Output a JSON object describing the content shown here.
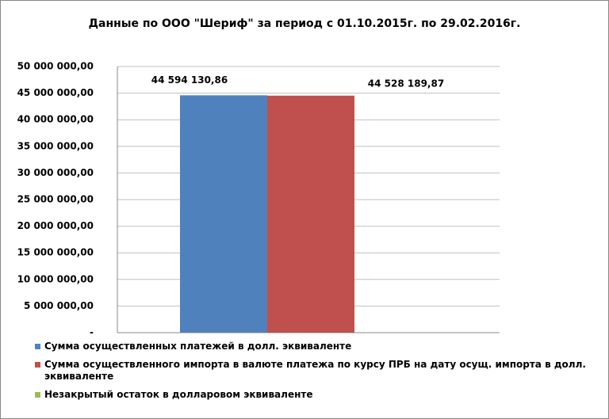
{
  "chart_data": {
    "type": "bar",
    "title": "Данные по ООО \"Шериф\" за период с 01.10.2015г. по 29.02.2016г.",
    "categories": [
      null
    ],
    "series": [
      {
        "name": "Сумма осуществленных платежей в долл. эквиваленте",
        "color": "#4f81bd",
        "values": [
          44594130.86
        ],
        "value_labels": [
          "44 594 130,86"
        ]
      },
      {
        "name": "Сумма осуществленного импорта в валюте платежа по курсу ПРБ на дату осущ. импорта в долл. эквиваленте",
        "color": "#c0504d",
        "values": [
          44528189.87
        ],
        "value_labels": [
          "44 528 189,87"
        ]
      },
      {
        "name": "Незакрытый остаток в долларовом эквиваленте",
        "color": "#9bbb59",
        "values": [
          null
        ]
      }
    ],
    "ylim": [
      0,
      50000000
    ],
    "yticks": [
      {
        "value": 0,
        "label": "-"
      },
      {
        "value": 5000000,
        "label": "5 000 000,00"
      },
      {
        "value": 10000000,
        "label": "10 000 000,00"
      },
      {
        "value": 15000000,
        "label": "15 000 000,00"
      },
      {
        "value": 20000000,
        "label": "20 000 000,00"
      },
      {
        "value": 25000000,
        "label": "25 000 000,00"
      },
      {
        "value": 30000000,
        "label": "30 000 000,00"
      },
      {
        "value": 35000000,
        "label": "35 000 000,00"
      },
      {
        "value": 40000000,
        "label": "40 000 000,00"
      },
      {
        "value": 45000000,
        "label": "45 000 000,00"
      },
      {
        "value": 50000000,
        "label": "50 000 000,00"
      }
    ],
    "grid": true
  }
}
